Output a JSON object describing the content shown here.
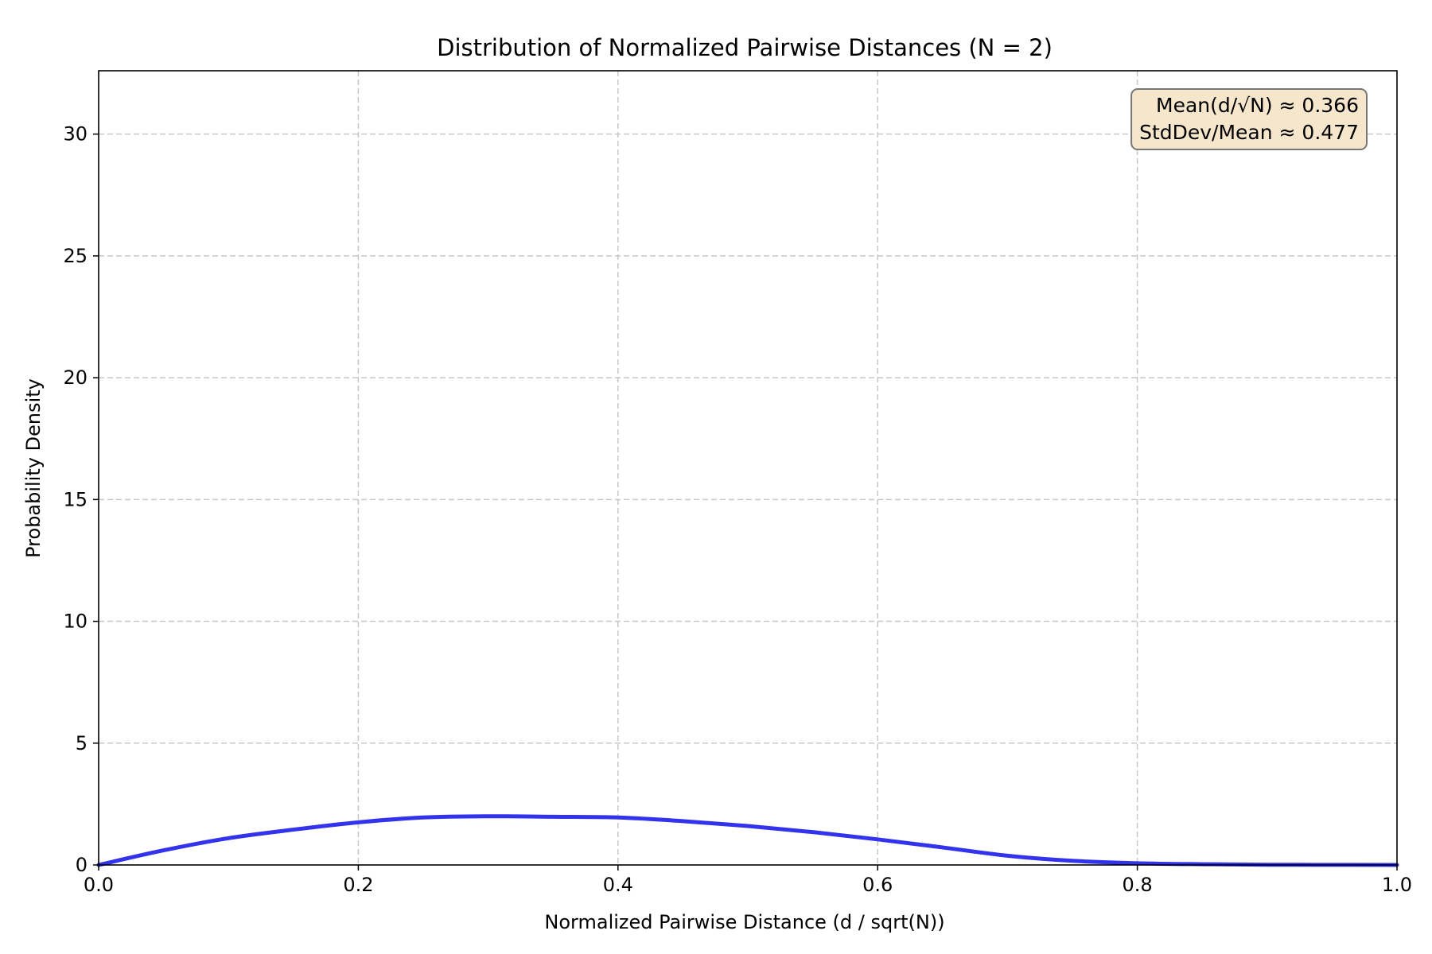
{
  "chart_data": {
    "type": "line",
    "title": "Distribution of Normalized Pairwise Distances (N = 2)",
    "xlabel": "Normalized Pairwise Distance (d / sqrt(N))",
    "ylabel": "Probability Density",
    "xlim": [
      0.0,
      1.0
    ],
    "ylim": [
      0,
      32.6
    ],
    "x_ticks": [
      0.0,
      0.2,
      0.4,
      0.6,
      0.8,
      1.0
    ],
    "x_tick_labels": [
      "0.0",
      "0.2",
      "0.4",
      "0.6",
      "0.8",
      "1.0"
    ],
    "y_ticks": [
      0,
      5,
      10,
      15,
      20,
      25,
      30
    ],
    "y_tick_labels": [
      "0",
      "5",
      "10",
      "15",
      "20",
      "25",
      "30"
    ],
    "grid": true,
    "annotation": {
      "lines": [
        "Mean(d/√N) ≈ 0.366",
        "StdDev/Mean ≈ 0.477"
      ],
      "placement": "top-right",
      "background": "#f5e6cc",
      "border": "#777777"
    },
    "series": [
      {
        "color": "#3333ee",
        "x": [
          0.0,
          0.05,
          0.1,
          0.15,
          0.2,
          0.25,
          0.3,
          0.35,
          0.4,
          0.45,
          0.5,
          0.55,
          0.6,
          0.65,
          0.7,
          0.75,
          0.8,
          0.85,
          0.9,
          0.95,
          1.0
        ],
        "y": [
          0.0,
          0.6,
          1.1,
          1.45,
          1.75,
          1.95,
          2.0,
          1.98,
          1.95,
          1.8,
          1.6,
          1.35,
          1.05,
          0.72,
          0.38,
          0.17,
          0.07,
          0.03,
          0.01,
          0.005,
          0.0
        ]
      }
    ]
  }
}
